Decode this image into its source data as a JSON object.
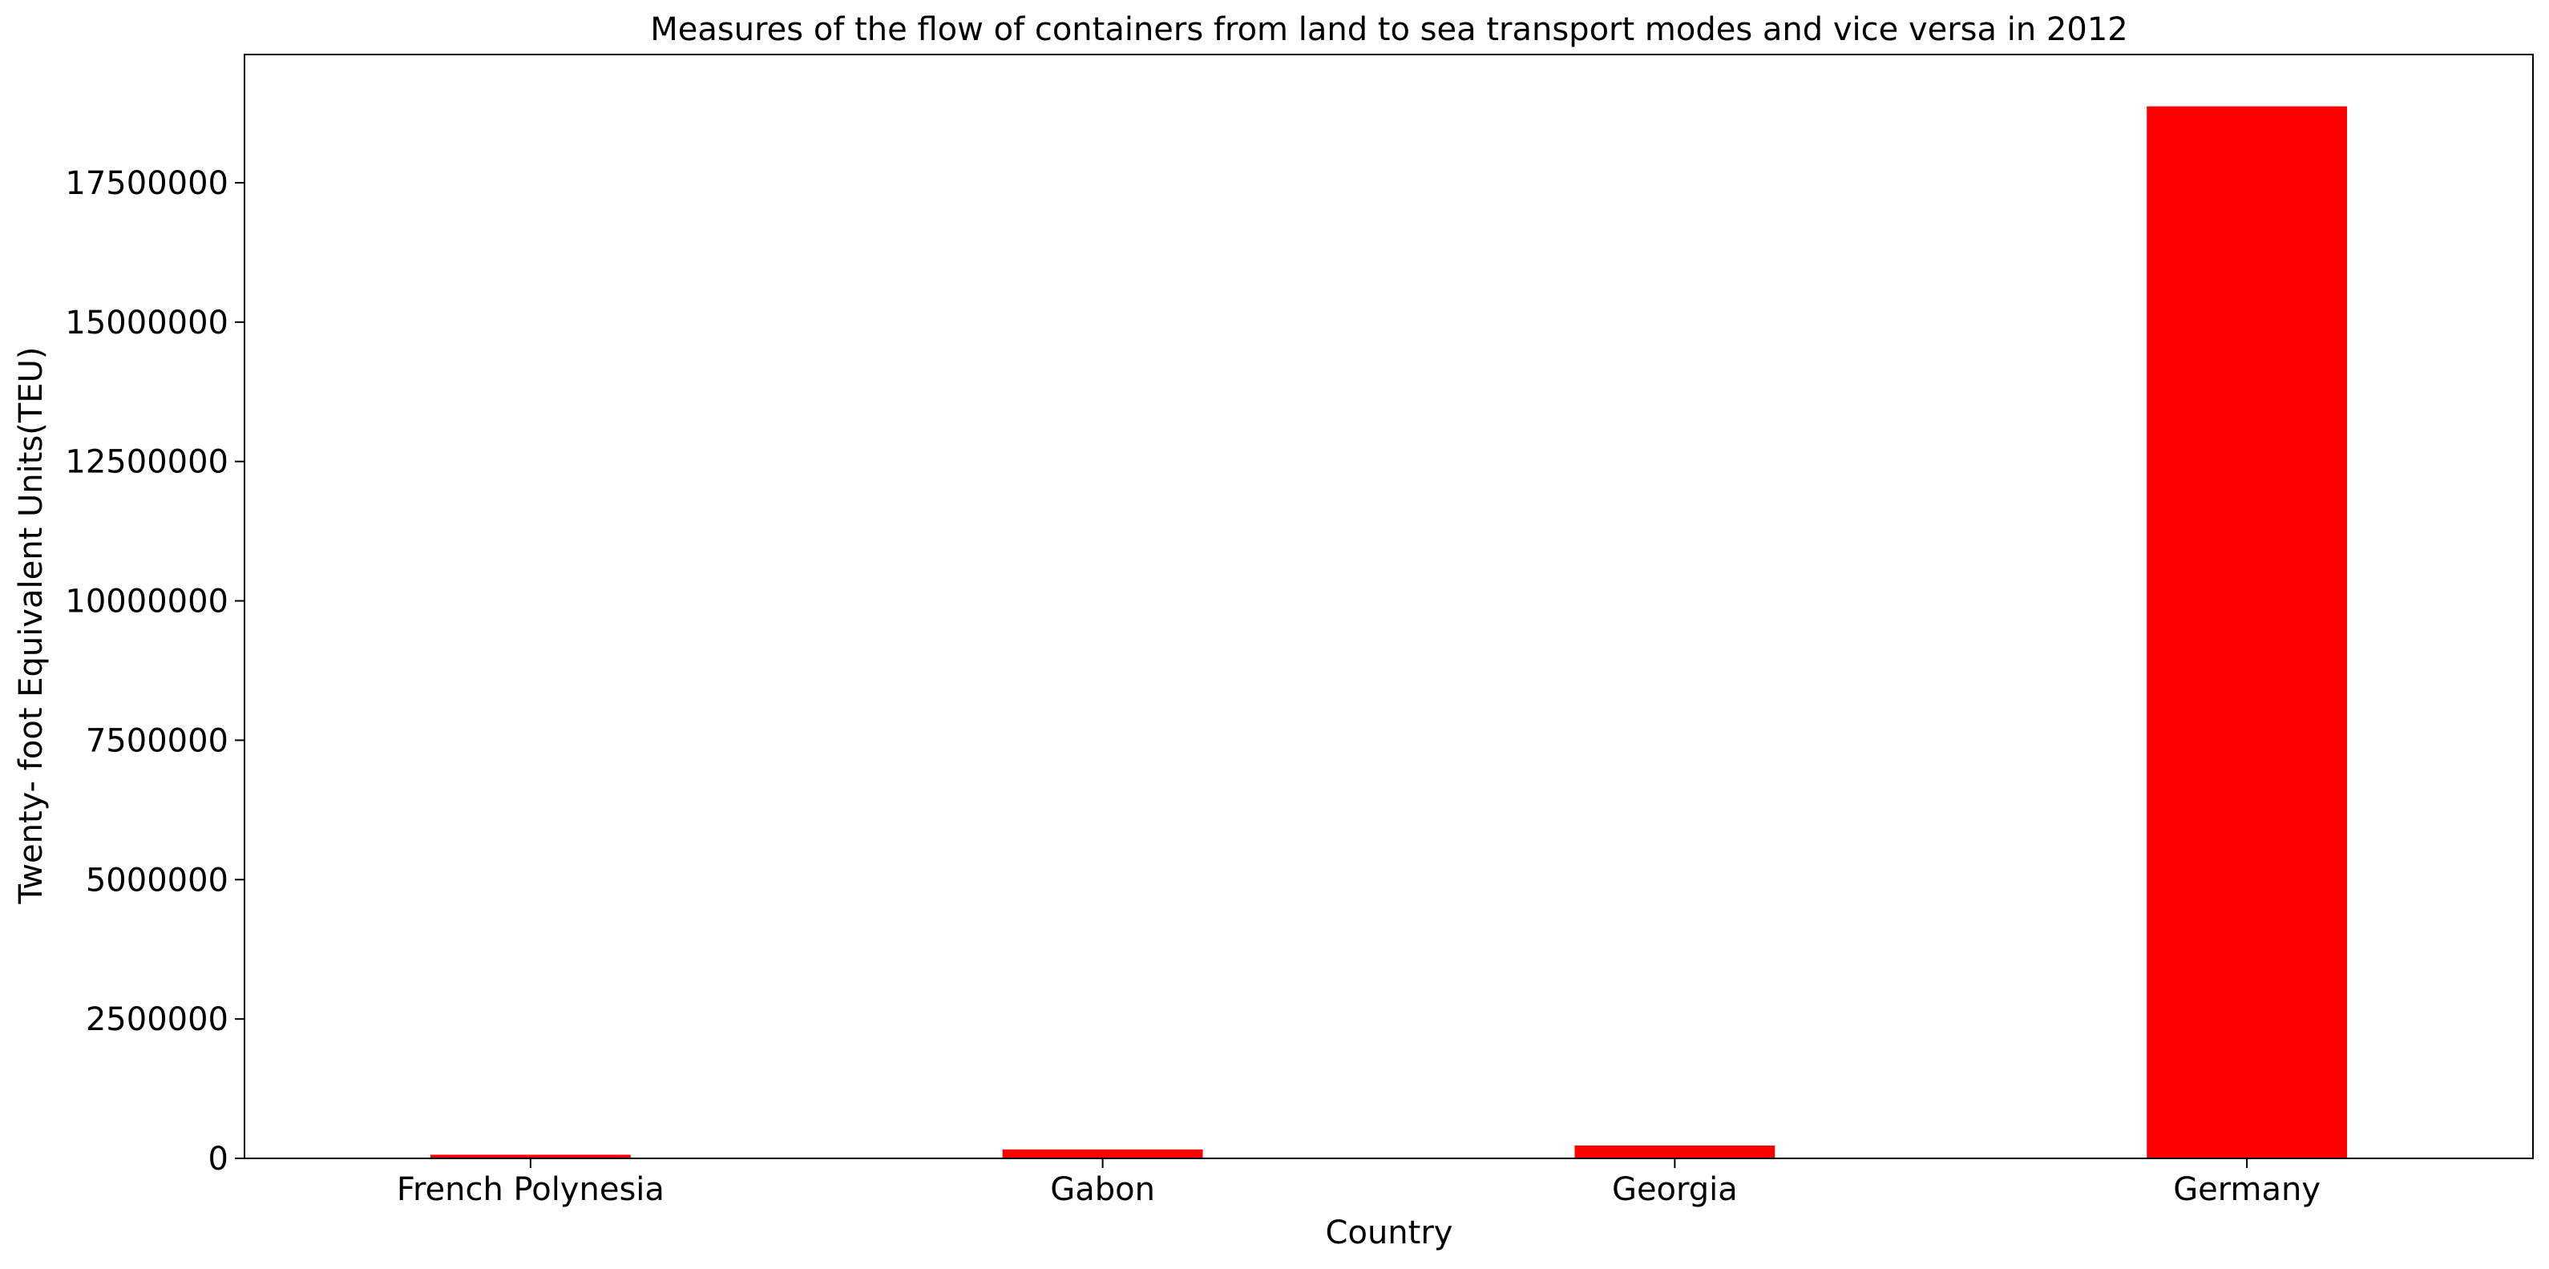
{
  "chart_data": {
    "type": "bar",
    "title": "Measures of the flow of containers from land to sea transport modes and vice versa in 2012",
    "xlabel": "Country",
    "ylabel": "Twenty- foot Equivalent Units(TEU)",
    "categories": [
      "French Polynesia",
      "Gabon",
      "Georgia",
      "Germany"
    ],
    "values": [
      65000,
      160000,
      230000,
      18870000
    ],
    "ylim": [
      0,
      19800000
    ],
    "yticks": [
      0,
      2500000,
      5000000,
      7500000,
      10000000,
      12500000,
      15000000,
      17500000
    ],
    "ytick_labels": [
      "0",
      "2500000",
      "5000000",
      "7500000",
      "10000000",
      "12500000",
      "15000000",
      "17500000"
    ],
    "bar_color": "#ff0000",
    "grid": false,
    "legend": null
  }
}
